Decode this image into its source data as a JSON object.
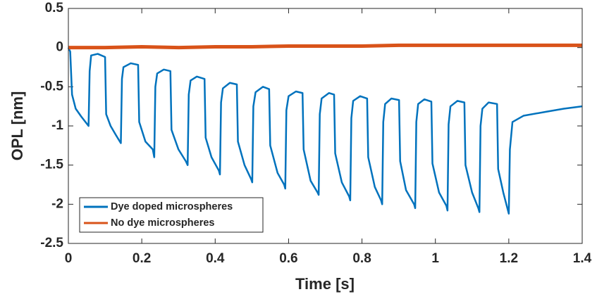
{
  "chart_data": {
    "type": "line",
    "xlabel": "Time [s]",
    "ylabel": "OPL [nm]",
    "xlim": [
      0,
      1.4
    ],
    "ylim": [
      -2.5,
      0.5
    ],
    "xticks": [
      0,
      0.2,
      0.4,
      0.6,
      0.8,
      1,
      1.2,
      1.4
    ],
    "yticks": [
      0.5,
      0,
      -0.5,
      -1,
      -1.5,
      -2,
      -2.5
    ],
    "legend": "lower left",
    "series": [
      {
        "name": "Dye doped microspheres",
        "color": "#0072bd",
        "x": [
          0,
          0.005,
          0.01,
          0.02,
          0.035,
          0.055,
          0.058,
          0.062,
          0.08,
          0.1,
          0.103,
          0.115,
          0.13,
          0.143,
          0.146,
          0.15,
          0.17,
          0.19,
          0.193,
          0.21,
          0.23,
          0.234,
          0.237,
          0.242,
          0.26,
          0.278,
          0.281,
          0.3,
          0.32,
          0.325,
          0.328,
          0.333,
          0.35,
          0.371,
          0.374,
          0.39,
          0.41,
          0.413,
          0.416,
          0.421,
          0.44,
          0.459,
          0.462,
          0.48,
          0.498,
          0.501,
          0.504,
          0.51,
          0.53,
          0.547,
          0.55,
          0.57,
          0.588,
          0.591,
          0.594,
          0.6,
          0.62,
          0.638,
          0.641,
          0.66,
          0.679,
          0.682,
          0.685,
          0.69,
          0.71,
          0.724,
          0.727,
          0.745,
          0.765,
          0.768,
          0.771,
          0.776,
          0.795,
          0.814,
          0.817,
          0.835,
          0.852,
          0.855,
          0.858,
          0.863,
          0.88,
          0.901,
          0.904,
          0.92,
          0.942,
          0.945,
          0.948,
          0.953,
          0.97,
          0.989,
          0.992,
          1.01,
          1.03,
          1.033,
          1.036,
          1.041,
          1.06,
          1.079,
          1.082,
          1.1,
          1.117,
          1.12,
          1.123,
          1.128,
          1.145,
          1.168,
          1.171,
          1.185,
          1.2,
          1.203,
          1.21,
          1.24,
          1.3,
          1.35,
          1.4
        ],
        "values": [
          0,
          -0.05,
          -0.6,
          -0.78,
          -0.88,
          -1.0,
          -0.3,
          -0.1,
          -0.08,
          -0.12,
          -0.85,
          -1.0,
          -1.12,
          -1.22,
          -0.4,
          -0.25,
          -0.2,
          -0.22,
          -0.95,
          -1.2,
          -1.3,
          -1.4,
          -0.5,
          -0.33,
          -0.28,
          -0.3,
          -1.05,
          -1.3,
          -1.45,
          -1.5,
          -0.6,
          -0.42,
          -0.37,
          -0.4,
          -1.15,
          -1.4,
          -1.57,
          -1.62,
          -0.7,
          -0.52,
          -0.45,
          -0.47,
          -1.2,
          -1.5,
          -1.68,
          -1.72,
          -0.75,
          -0.57,
          -0.5,
          -0.53,
          -1.25,
          -1.6,
          -1.75,
          -1.8,
          -0.8,
          -0.62,
          -0.56,
          -0.58,
          -1.3,
          -1.7,
          -1.85,
          -1.88,
          -0.85,
          -0.65,
          -0.58,
          -0.6,
          -1.35,
          -1.72,
          -1.9,
          -1.95,
          -0.9,
          -0.68,
          -0.62,
          -0.65,
          -1.4,
          -1.78,
          -1.95,
          -2.0,
          -0.95,
          -0.72,
          -0.65,
          -0.67,
          -1.45,
          -1.82,
          -2.0,
          -2.05,
          -0.95,
          -0.72,
          -0.66,
          -0.69,
          -1.48,
          -1.85,
          -2.02,
          -2.08,
          -0.98,
          -0.75,
          -0.68,
          -0.7,
          -1.5,
          -1.85,
          -2.05,
          -2.1,
          -1.0,
          -0.78,
          -0.7,
          -0.72,
          -1.55,
          -1.85,
          -2.12,
          -1.3,
          -0.95,
          -0.87,
          -0.82,
          -0.78,
          -0.75
        ]
      },
      {
        "name": "No dye microspheres",
        "color": "#d95319",
        "x": [
          0,
          0.1,
          0.2,
          0.3,
          0.4,
          0.5,
          0.6,
          0.7,
          0.8,
          0.9,
          1,
          1.1,
          1.2,
          1.3,
          1.4
        ],
        "values": [
          0,
          0,
          0.01,
          0,
          0.01,
          0.01,
          0.02,
          0.02,
          0.02,
          0.03,
          0.03,
          0.03,
          0.03,
          0.03,
          0.03
        ]
      }
    ]
  }
}
